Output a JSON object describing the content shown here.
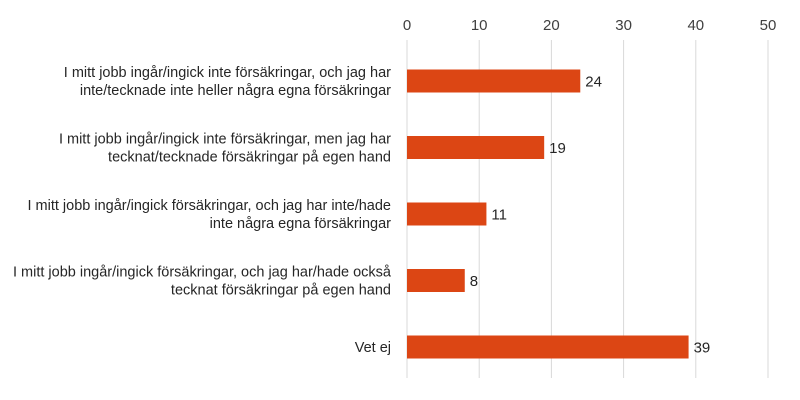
{
  "chart_data": {
    "type": "bar",
    "orientation": "horizontal",
    "categories": [
      [
        "I mitt jobb ingår/ingick inte försäkringar, och jag har",
        "inte/tecknade inte heller några egna försäkringar"
      ],
      [
        "I mitt jobb ingår/ingick inte försäkringar, men jag har",
        "tecknat/tecknade försäkringar på egen hand"
      ],
      [
        "I mitt jobb ingår/ingick försäkringar, och jag har inte/hade",
        "inte några egna försäkringar"
      ],
      [
        "I mitt jobb ingår/ingick försäkringar, och jag har/hade också",
        "tecknat försäkringar på egen hand"
      ],
      [
        "Vet ej"
      ]
    ],
    "values": [
      24,
      19,
      11,
      8,
      39
    ],
    "xlim": [
      0,
      50
    ],
    "xticks": [
      0,
      10,
      20,
      30,
      40,
      50
    ],
    "axis_position": "top",
    "grid": true,
    "title": "",
    "xlabel": "",
    "ylabel": "",
    "bar_color": "#dc4614"
  }
}
